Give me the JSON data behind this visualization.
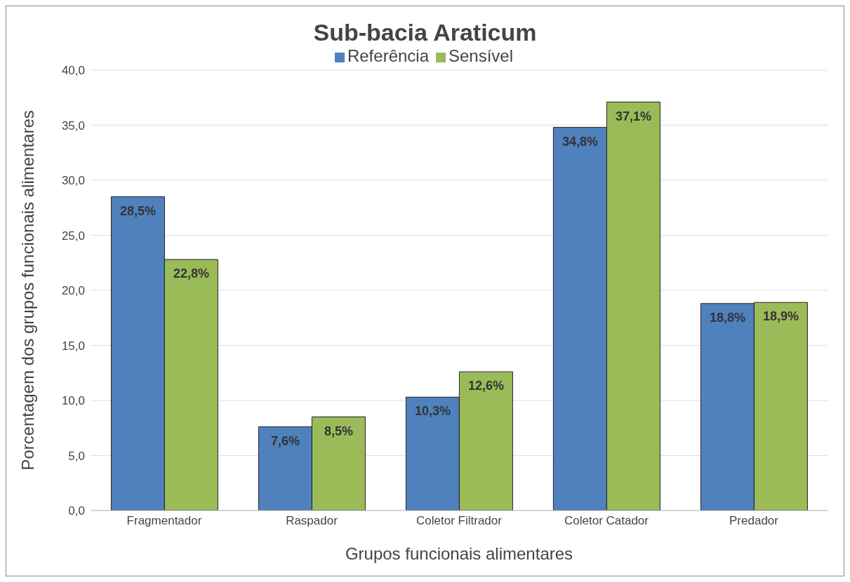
{
  "chart_data": {
    "type": "bar",
    "title": "Sub-bacia Araticum",
    "xlabel": "Grupos funcionais alimentares",
    "ylabel": "Porcentagem dos grupos funcionais alimentares",
    "categories": [
      "Fragmentador",
      "Raspador",
      "Coletor Filtrador",
      "Coletor Catador",
      "Predador"
    ],
    "series": [
      {
        "name": "Referência",
        "color": "#4f81bd",
        "values": [
          28.5,
          7.6,
          10.3,
          34.8,
          18.8
        ],
        "value_labels": [
          "28,5%",
          "7,6%",
          "10,3%",
          "34,8%",
          "18,8%"
        ]
      },
      {
        "name": "Sensível",
        "color": "#9bbb59",
        "values": [
          22.8,
          8.5,
          12.6,
          37.1,
          18.9
        ],
        "value_labels": [
          "22,8%",
          "8,5%",
          "12,6%",
          "37,1%",
          "18,9%"
        ]
      }
    ],
    "ylim": [
      0,
      40
    ],
    "yticks": [
      {
        "value": 0,
        "label": "0,0"
      },
      {
        "value": 5,
        "label": "5,0"
      },
      {
        "value": 10,
        "label": "10,0"
      },
      {
        "value": 15,
        "label": "15,0"
      },
      {
        "value": 20,
        "label": "20,0"
      },
      {
        "value": 25,
        "label": "25,0"
      },
      {
        "value": 30,
        "label": "30,0"
      },
      {
        "value": 35,
        "label": "35,0"
      },
      {
        "value": 40,
        "label": "40,0"
      }
    ],
    "grid": "y",
    "legend": "top"
  }
}
